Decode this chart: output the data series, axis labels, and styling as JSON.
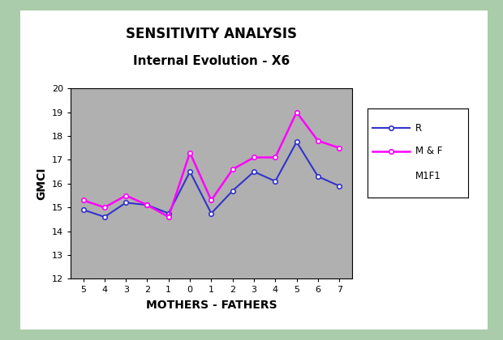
{
  "title_line1": "SENSITIVITY ANALYSIS",
  "title_line2": "Internal Evolution - X6",
  "xlabel": "MOTHERS - FATHERS",
  "ylabel": "GMCI",
  "x_labels": [
    "5",
    "4",
    "3",
    "2",
    "1",
    "0",
    "1",
    "2",
    "3",
    "4",
    "5",
    "6",
    "7"
  ],
  "x_values": [
    0,
    1,
    2,
    3,
    4,
    5,
    6,
    7,
    8,
    9,
    10,
    11,
    12
  ],
  "R_values": [
    14.9,
    14.6,
    15.2,
    15.1,
    14.75,
    16.5,
    14.75,
    15.7,
    16.5,
    16.1,
    17.75,
    16.3,
    15.9
  ],
  "MF_values": [
    15.3,
    15.0,
    15.5,
    15.1,
    14.6,
    17.3,
    15.3,
    16.6,
    17.1,
    17.1,
    19.0,
    17.8,
    17.5
  ],
  "R_color": "#3333cc",
  "MF_color": "#ff00ff",
  "plot_bg_color": "#b0b0b0",
  "white_bg_color": "#ffffff",
  "frame_color": "#aaccaa",
  "ylim": [
    12,
    20
  ],
  "yticks": [
    12,
    13,
    14,
    15,
    16,
    17,
    18,
    19,
    20
  ],
  "legend_labels": [
    "R",
    "M & F",
    "M1F1"
  ],
  "title_fontsize": 12,
  "label_fontsize": 10,
  "tick_fontsize": 8
}
